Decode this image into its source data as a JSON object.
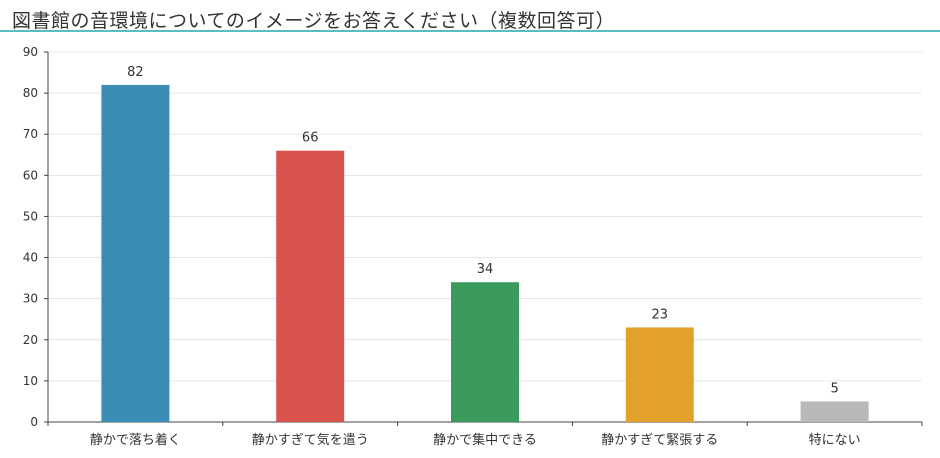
{
  "chart_data": {
    "type": "bar",
    "title": "図書館の音環境についてのイメージをお答えください（複数回答可）",
    "xlabel": "",
    "ylabel": "",
    "categories": [
      "静かで落ち着く",
      "静かすぎて気を遣う",
      "静かで集中できる",
      "静かすぎて緊張する",
      "特にない"
    ],
    "values": [
      82,
      66,
      34,
      23,
      5
    ],
    "colors": [
      "#3a8db5",
      "#d9534f",
      "#3a9b5c",
      "#e2a12b",
      "#b8b8b8"
    ],
    "ylim": [
      0,
      90
    ],
    "yticks": [
      0,
      10,
      20,
      30,
      40,
      50,
      60,
      70,
      80,
      90
    ],
    "grid": true,
    "data_labels": true,
    "legend": "none"
  },
  "theme": {
    "accent": "#5bbcc4"
  }
}
